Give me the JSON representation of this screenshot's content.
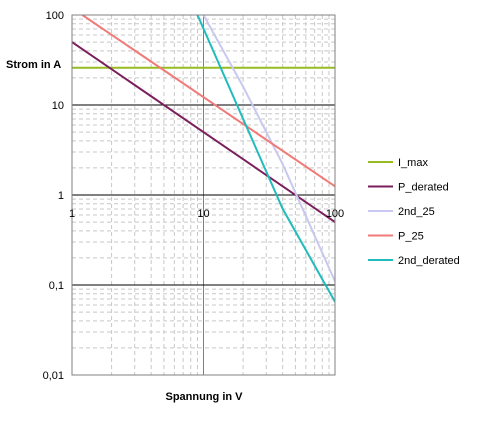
{
  "chart_data": {
    "type": "line",
    "title": "",
    "xlabel": "Spannung in V",
    "ylabel": "Strom in A",
    "x_scale": "log",
    "y_scale": "log",
    "xlim": [
      1,
      100
    ],
    "ylim": [
      0.01,
      100
    ],
    "x_ticks": [
      1,
      10,
      100
    ],
    "x_tick_labels": [
      "1",
      "10",
      "100"
    ],
    "y_ticks": [
      0.01,
      0.1,
      1,
      10,
      100
    ],
    "y_tick_labels": [
      "0,01",
      "0,1",
      "1",
      "10",
      "100"
    ],
    "grid": "major and minor",
    "legend_position": "right",
    "series": [
      {
        "name": "I_max",
        "color": "#99bb22",
        "x": [
          1,
          100
        ],
        "y": [
          26,
          26
        ]
      },
      {
        "name": "P_derated",
        "color": "#7a1f5c",
        "x": [
          1,
          100
        ],
        "y": [
          50,
          0.5
        ]
      },
      {
        "name": "2nd_25",
        "color": "#c8c8f0",
        "x": [
          10,
          20,
          40,
          100
        ],
        "y": [
          100,
          16,
          2.2,
          0.11
        ]
      },
      {
        "name": "P_25",
        "color": "#f07a78",
        "x": [
          1.2,
          100
        ],
        "y": [
          100,
          1.25
        ]
      },
      {
        "name": "2nd_derated",
        "color": "#22bbbb",
        "x": [
          9,
          20,
          40,
          100
        ],
        "y": [
          100,
          7,
          0.7,
          0.065
        ]
      }
    ]
  }
}
